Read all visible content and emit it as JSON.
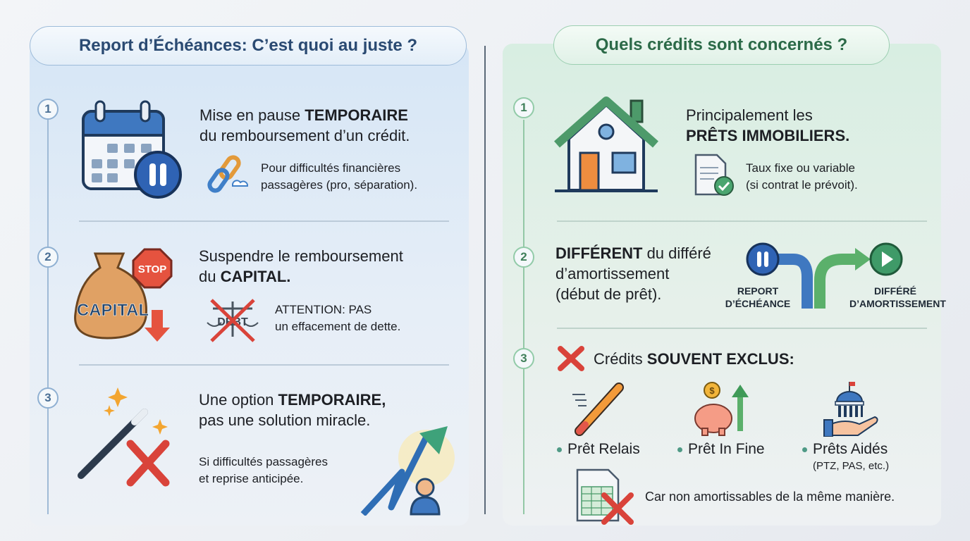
{
  "left": {
    "title": "Report d’Échéances: C’est quoi au juste ?",
    "items": [
      {
        "number": "1",
        "line1_pre": "Mise en pause ",
        "line1_bold": "TEMPORAIRE",
        "line2": "du remboursement d’un crédit.",
        "sub1": "Pour difficultés financières",
        "sub2": "passagères (pro, séparation).",
        "icons": [
          "calendar-pause-icon",
          "broken-chain-cloud-icon"
        ]
      },
      {
        "number": "2",
        "line1": "Suspendre le remboursement",
        "line2_pre": "du ",
        "line2_bold": "CAPITAL.",
        "sub1": "ATTENTION: PAS",
        "sub2": "un effacement de dette.",
        "bag_label": "CAPITAL",
        "stop_label": "STOP",
        "scale_label": "DEBT",
        "icons": [
          "money-bag-stop-icon",
          "crossed-scale-icon"
        ]
      },
      {
        "number": "3",
        "line1_pre": "Une option ",
        "line1_bold": "TEMPORAIRE,",
        "line2": "pas une solution miracle.",
        "sub1": "Si difficultés passagères",
        "sub2": "et reprise anticipée.",
        "icons": [
          "magic-wand-cross-icon",
          "rising-arrow-person-icon"
        ]
      }
    ]
  },
  "right": {
    "title": "Quels crédits sont concernés ?",
    "items": [
      {
        "number": "1",
        "line1": "Principalement les",
        "line2_bold": "PRÊTS IMMOBILIERS.",
        "sub1": "Taux fixe ou variable",
        "sub2": "(si contrat le prévoit).",
        "icons": [
          "house-icon",
          "document-check-icon"
        ]
      },
      {
        "number": "2",
        "line1_bold": "DIFFÉRENT",
        "line1_post": " du différé",
        "line2": "d’amortissement",
        "line3": "(début de prêt).",
        "label_a1": "REPORT",
        "label_a2": "D’ÉCHÉANCE",
        "label_b1": "DIFFÉRÉ",
        "label_b2": "D’AMORTISSEMENT",
        "icons": [
          "pause-play-fork-icon"
        ]
      },
      {
        "number": "3",
        "heading_pre": "Crédits ",
        "heading_bold": "SOUVENT EXCLUS:",
        "loans": [
          {
            "label": "Prêt Relais",
            "icon": "pencil-icon"
          },
          {
            "label": "Prêt In Fine",
            "icon": "piggy-bank-arrow-icon"
          },
          {
            "label": "Prêts Aidés",
            "note": "(PTZ, PAS, etc.)",
            "icon": "government-hand-icon"
          }
        ],
        "footer": "Car non amortissables de la même manière.",
        "footer_icon": "spreadsheet-cross-icon"
      }
    ]
  },
  "colors": {
    "left_accent": "#2a4a72",
    "right_accent": "#2c6a48",
    "cross_red": "#d9433a"
  }
}
